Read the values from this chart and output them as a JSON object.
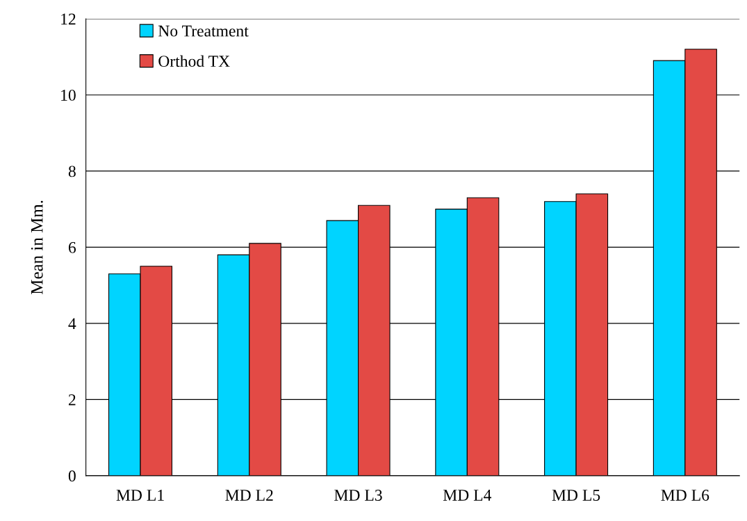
{
  "chart_data": {
    "type": "bar",
    "ylabel": "Mean in Mm.",
    "categories": [
      "MD L1",
      "MD L2",
      "MD L3",
      "MD L4",
      "MD L5",
      "MD L6"
    ],
    "series": [
      {
        "name": "No Treatment",
        "color": "#00d4ff",
        "values": [
          5.3,
          5.8,
          6.7,
          7.0,
          7.2,
          10.9
        ]
      },
      {
        "name": "Orthod TX",
        "color": "#e34a45",
        "values": [
          5.5,
          6.1,
          7.1,
          7.3,
          7.4,
          11.2
        ]
      }
    ],
    "ylim": [
      0,
      12
    ],
    "yticks": [
      0,
      2,
      4,
      6,
      8,
      10,
      12
    ],
    "grid": "y",
    "legend": "top left"
  }
}
